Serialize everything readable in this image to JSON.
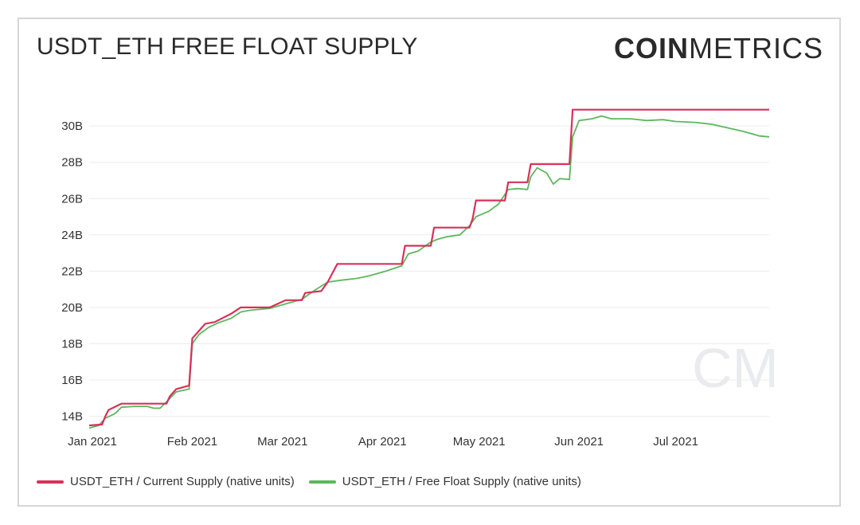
{
  "header": {
    "title": "USDT_ETH FREE FLOAT SUPPLY",
    "logo_bold": "COIN",
    "logo_light": "METRICS",
    "watermark": "CM"
  },
  "chart_data": {
    "type": "line",
    "title": "USDT_ETH FREE FLOAT SUPPLY",
    "xlabel": "",
    "ylabel": "",
    "x_ticks": [
      "Jan 2021",
      "Feb 2021",
      "Mar 2021",
      "Apr 2021",
      "May 2021",
      "Jun 2021",
      "Jul 2021"
    ],
    "y_ticks": [
      "14B",
      "16B",
      "18B",
      "20B",
      "22B",
      "24B",
      "26B",
      "28B",
      "30B"
    ],
    "ylim": [
      13.5,
      31.5
    ],
    "xlim": [
      "2021-01-01",
      "2021-07-31"
    ],
    "grid": true,
    "legend_position": "bottom-left",
    "series": [
      {
        "name": "USDT_ETH / Current Supply (native units)",
        "color": "#d8315b",
        "points": [
          [
            "2021-01-01",
            13.5
          ],
          [
            "2021-01-05",
            13.55
          ],
          [
            "2021-01-06",
            14.0
          ],
          [
            "2021-01-07",
            14.35
          ],
          [
            "2021-01-11",
            14.7
          ],
          [
            "2021-01-25",
            14.7
          ],
          [
            "2021-01-26",
            15.1
          ],
          [
            "2021-01-28",
            15.5
          ],
          [
            "2021-02-01",
            15.7
          ],
          [
            "2021-02-02",
            18.3
          ],
          [
            "2021-02-04",
            18.7
          ],
          [
            "2021-02-06",
            19.1
          ],
          [
            "2021-02-09",
            19.2
          ],
          [
            "2021-02-14",
            19.65
          ],
          [
            "2021-02-17",
            20.0
          ],
          [
            "2021-02-26",
            20.0
          ],
          [
            "2021-03-03",
            20.4
          ],
          [
            "2021-03-08",
            20.4
          ],
          [
            "2021-03-09",
            20.8
          ],
          [
            "2021-03-14",
            20.9
          ],
          [
            "2021-03-16",
            21.4
          ],
          [
            "2021-03-19",
            22.4
          ],
          [
            "2021-03-29",
            22.4
          ],
          [
            "2021-04-08",
            22.4
          ],
          [
            "2021-04-09",
            23.4
          ],
          [
            "2021-04-17",
            23.4
          ],
          [
            "2021-04-18",
            24.4
          ],
          [
            "2021-04-29",
            24.4
          ],
          [
            "2021-04-30",
            24.9
          ],
          [
            "2021-05-01",
            25.9
          ],
          [
            "2021-05-10",
            25.9
          ],
          [
            "2021-05-11",
            26.9
          ],
          [
            "2021-05-17",
            26.9
          ],
          [
            "2021-05-18",
            27.9
          ],
          [
            "2021-05-30",
            27.9
          ],
          [
            "2021-05-31",
            30.9
          ],
          [
            "2021-07-31",
            30.9
          ]
        ]
      },
      {
        "name": "USDT_ETH / Free Float Supply (native units)",
        "color": "#5cb85c",
        "points": [
          [
            "2021-01-01",
            13.35
          ],
          [
            "2021-01-04",
            13.5
          ],
          [
            "2021-01-06",
            13.9
          ],
          [
            "2021-01-09",
            14.15
          ],
          [
            "2021-01-11",
            14.5
          ],
          [
            "2021-01-15",
            14.55
          ],
          [
            "2021-01-19",
            14.55
          ],
          [
            "2021-01-21",
            14.45
          ],
          [
            "2021-01-23",
            14.45
          ],
          [
            "2021-01-25",
            14.8
          ],
          [
            "2021-01-28",
            15.35
          ],
          [
            "2021-02-01",
            15.5
          ],
          [
            "2021-02-02",
            18.0
          ],
          [
            "2021-02-04",
            18.5
          ],
          [
            "2021-02-07",
            18.9
          ],
          [
            "2021-02-10",
            19.15
          ],
          [
            "2021-02-14",
            19.4
          ],
          [
            "2021-02-17",
            19.75
          ],
          [
            "2021-02-20",
            19.85
          ],
          [
            "2021-02-26",
            19.95
          ],
          [
            "2021-03-03",
            20.2
          ],
          [
            "2021-03-08",
            20.45
          ],
          [
            "2021-03-12",
            20.95
          ],
          [
            "2021-03-16",
            21.4
          ],
          [
            "2021-03-20",
            21.5
          ],
          [
            "2021-03-25",
            21.6
          ],
          [
            "2021-03-29",
            21.75
          ],
          [
            "2021-04-03",
            22.0
          ],
          [
            "2021-04-08",
            22.3
          ],
          [
            "2021-04-10",
            22.95
          ],
          [
            "2021-04-13",
            23.1
          ],
          [
            "2021-04-17",
            23.6
          ],
          [
            "2021-04-19",
            23.75
          ],
          [
            "2021-04-22",
            23.9
          ],
          [
            "2021-04-26",
            24.0
          ],
          [
            "2021-04-29",
            24.5
          ],
          [
            "2021-05-01",
            25.0
          ],
          [
            "2021-05-05",
            25.3
          ],
          [
            "2021-05-08",
            25.7
          ],
          [
            "2021-05-11",
            26.5
          ],
          [
            "2021-05-14",
            26.55
          ],
          [
            "2021-05-17",
            26.5
          ],
          [
            "2021-05-18",
            27.2
          ],
          [
            "2021-05-20",
            27.7
          ],
          [
            "2021-05-23",
            27.4
          ],
          [
            "2021-05-25",
            26.8
          ],
          [
            "2021-05-27",
            27.1
          ],
          [
            "2021-05-30",
            27.05
          ],
          [
            "2021-05-31",
            29.4
          ],
          [
            "2021-06-02",
            30.3
          ],
          [
            "2021-06-06",
            30.4
          ],
          [
            "2021-06-09",
            30.55
          ],
          [
            "2021-06-12",
            30.4
          ],
          [
            "2021-06-18",
            30.4
          ],
          [
            "2021-06-23",
            30.3
          ],
          [
            "2021-06-28",
            30.35
          ],
          [
            "2021-07-02",
            30.25
          ],
          [
            "2021-07-08",
            30.2
          ],
          [
            "2021-07-13",
            30.1
          ],
          [
            "2021-07-18",
            29.9
          ],
          [
            "2021-07-23",
            29.7
          ],
          [
            "2021-07-26",
            29.55
          ],
          [
            "2021-07-28",
            29.45
          ],
          [
            "2021-07-31",
            29.4
          ]
        ]
      }
    ]
  }
}
